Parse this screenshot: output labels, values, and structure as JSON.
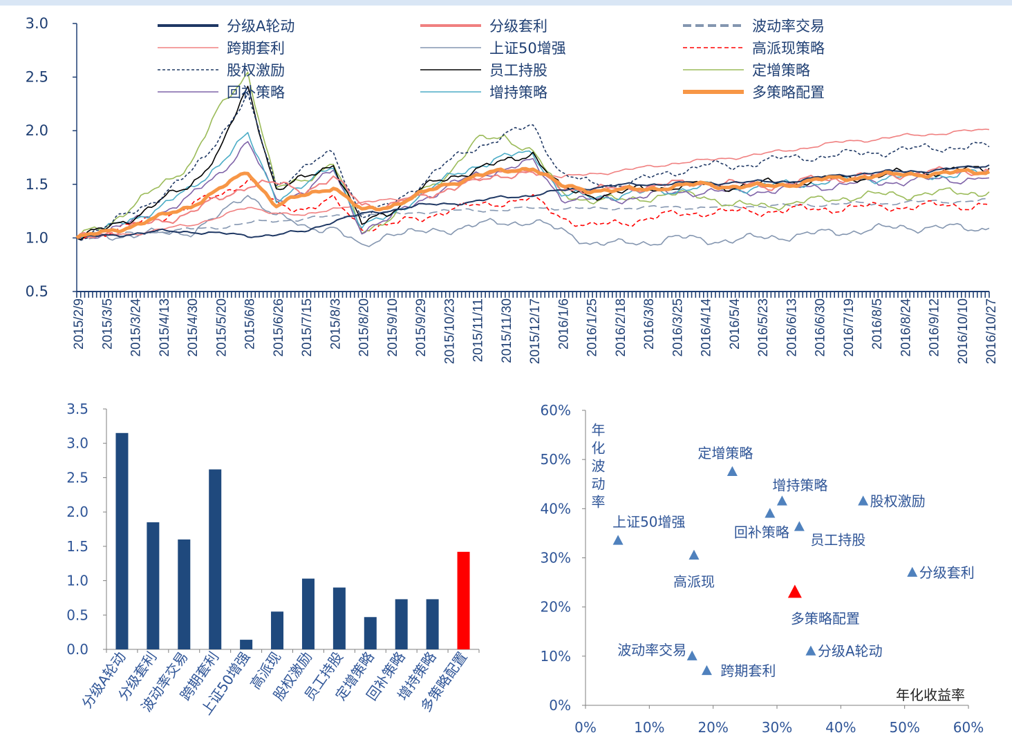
{
  "chart_data": [
    {
      "type": "line",
      "ylim": [
        0.5,
        3.0
      ],
      "yticks": [
        "0.5",
        "1.0",
        "1.5",
        "2.0",
        "2.5",
        "3.0"
      ],
      "x_tick_labels": [
        "2015/2/9",
        "2015/3/5",
        "2015/3/24",
        "2015/4/13",
        "2015/4/30",
        "2015/5/20",
        "2015/6/8",
        "2015/6/26",
        "2015/7/15",
        "2015/8/3",
        "2015/8/20",
        "2015/9/10",
        "2015/9/29",
        "2015/10/23",
        "2015/11/11",
        "2015/11/30",
        "2015/12/17",
        "2016/1/6",
        "2016/1/25",
        "2016/2/18",
        "2016/3/8",
        "2016/3/25",
        "2016/4/14",
        "2016/5/4",
        "2016/5/23",
        "2016/6/13",
        "2016/6/30",
        "2016/7/19",
        "2016/8/5",
        "2016/8/24",
        "2016/9/12",
        "2016/10/10",
        "2016/10/27"
      ],
      "series": [
        {
          "name": "分级A轮动",
          "color": "#1f3864",
          "values": [
            1.0,
            1.02,
            1.04,
            1.06,
            1.06,
            1.04,
            1.02,
            1.03,
            1.06,
            1.16,
            1.22,
            1.26,
            1.3,
            1.32,
            1.34,
            1.38,
            1.4,
            1.44,
            1.47,
            1.49,
            1.5,
            1.51,
            1.51,
            1.52,
            1.52,
            1.53,
            1.56,
            1.59,
            1.61,
            1.62,
            1.63,
            1.65,
            1.68
          ]
        },
        {
          "name": "分级套利",
          "color": "#f08080",
          "values": [
            1.0,
            1.05,
            1.1,
            1.16,
            1.24,
            1.36,
            1.5,
            1.5,
            1.45,
            1.55,
            1.32,
            1.3,
            1.38,
            1.46,
            1.52,
            1.6,
            1.6,
            1.48,
            1.44,
            1.46,
            1.48,
            1.5,
            1.52,
            1.5,
            1.49,
            1.5,
            1.55,
            1.56,
            1.58,
            1.6,
            1.61,
            1.62,
            1.63
          ]
        },
        {
          "name": "波动率交易",
          "color": "#8496b0",
          "dash": "12,6",
          "values": [
            1.0,
            1.02,
            1.04,
            1.06,
            1.08,
            1.1,
            1.14,
            1.16,
            1.18,
            1.2,
            1.22,
            1.22,
            1.24,
            1.25,
            1.26,
            1.26,
            1.28,
            1.28,
            1.27,
            1.28,
            1.28,
            1.29,
            1.28,
            1.29,
            1.3,
            1.3,
            1.31,
            1.32,
            1.32,
            1.33,
            1.34,
            1.34,
            1.35
          ]
        },
        {
          "name": "跨期套利",
          "color": "#f08080",
          "values": [
            1.0,
            1.02,
            1.04,
            1.08,
            1.12,
            1.2,
            1.28,
            1.24,
            1.2,
            1.28,
            1.32,
            1.36,
            1.4,
            1.5,
            1.56,
            1.62,
            1.64,
            1.56,
            1.6,
            1.62,
            1.66,
            1.7,
            1.72,
            1.75,
            1.78,
            1.82,
            1.86,
            1.9,
            1.92,
            1.95,
            1.97,
            1.99,
            2.01
          ]
        },
        {
          "name": "上证50增强",
          "color": "#8496b0",
          "values": [
            1.0,
            1.02,
            1.03,
            1.04,
            1.06,
            1.2,
            1.42,
            1.2,
            1.1,
            1.1,
            0.9,
            1.06,
            1.04,
            1.08,
            1.12,
            1.14,
            1.16,
            1.06,
            0.96,
            0.94,
            0.96,
            1.0,
            0.98,
            0.98,
            1.0,
            1.02,
            1.04,
            1.06,
            1.08,
            1.1,
            1.1,
            1.09,
            1.09
          ]
        },
        {
          "name": "高派现策略",
          "color": "#ff0000",
          "dash": "6,4",
          "values": [
            1.0,
            1.06,
            1.12,
            1.2,
            1.3,
            1.4,
            1.55,
            1.3,
            1.28,
            1.35,
            1.1,
            1.12,
            1.18,
            1.26,
            1.3,
            1.34,
            1.36,
            1.2,
            1.1,
            1.14,
            1.18,
            1.22,
            1.24,
            1.24,
            1.25,
            1.26,
            1.27,
            1.28,
            1.29,
            1.29,
            1.3,
            1.3,
            1.31
          ]
        },
        {
          "name": "股权激励",
          "color": "#1f3864",
          "dash": "4,3",
          "values": [
            1.0,
            1.1,
            1.25,
            1.4,
            1.6,
            1.95,
            2.3,
            1.5,
            1.65,
            1.8,
            1.2,
            1.3,
            1.5,
            1.7,
            1.85,
            1.95,
            2.05,
            1.6,
            1.5,
            1.5,
            1.55,
            1.62,
            1.68,
            1.66,
            1.72,
            1.74,
            1.76,
            1.78,
            1.8,
            1.82,
            1.84,
            1.85,
            1.85
          ]
        },
        {
          "name": "员工持股",
          "color": "#000000",
          "values": [
            1.0,
            1.08,
            1.2,
            1.35,
            1.5,
            1.8,
            2.4,
            1.45,
            1.55,
            1.7,
            1.12,
            1.25,
            1.45,
            1.55,
            1.65,
            1.7,
            1.8,
            1.45,
            1.4,
            1.42,
            1.46,
            1.48,
            1.5,
            1.48,
            1.5,
            1.52,
            1.54,
            1.56,
            1.58,
            1.6,
            1.62,
            1.63,
            1.65
          ]
        },
        {
          "name": "定增策略",
          "color": "#9bbb59",
          "values": [
            1.0,
            1.12,
            1.3,
            1.5,
            1.7,
            2.2,
            2.55,
            1.45,
            1.55,
            1.7,
            1.05,
            1.2,
            1.4,
            1.6,
            1.9,
            1.95,
            1.8,
            1.42,
            1.35,
            1.35,
            1.38,
            1.4,
            1.4,
            1.3,
            1.3,
            1.32,
            1.35,
            1.38,
            1.4,
            1.4,
            1.42,
            1.42,
            1.43
          ]
        },
        {
          "name": "回补策略",
          "color": "#7f63a8",
          "values": [
            1.0,
            1.06,
            1.15,
            1.25,
            1.38,
            1.6,
            1.9,
            1.35,
            1.45,
            1.62,
            1.08,
            1.18,
            1.35,
            1.48,
            1.58,
            1.65,
            1.7,
            1.38,
            1.35,
            1.36,
            1.4,
            1.42,
            1.44,
            1.42,
            1.44,
            1.46,
            1.48,
            1.5,
            1.52,
            1.53,
            1.54,
            1.55,
            1.56
          ]
        },
        {
          "name": "增持策略",
          "color": "#4bacc6",
          "values": [
            1.0,
            1.07,
            1.18,
            1.3,
            1.45,
            1.7,
            1.95,
            1.38,
            1.48,
            1.68,
            1.1,
            1.2,
            1.4,
            1.55,
            1.68,
            1.75,
            1.8,
            1.4,
            1.38,
            1.4,
            1.42,
            1.45,
            1.48,
            1.46,
            1.48,
            1.5,
            1.52,
            1.54,
            1.56,
            1.57,
            1.58,
            1.6,
            1.6
          ]
        },
        {
          "name": "多策略配置",
          "color": "#f79646",
          "width": 5,
          "values": [
            1.0,
            1.05,
            1.12,
            1.2,
            1.3,
            1.45,
            1.62,
            1.3,
            1.4,
            1.48,
            1.25,
            1.3,
            1.4,
            1.5,
            1.58,
            1.62,
            1.66,
            1.48,
            1.45,
            1.44,
            1.46,
            1.48,
            1.5,
            1.48,
            1.48,
            1.5,
            1.54,
            1.56,
            1.58,
            1.59,
            1.6,
            1.61,
            1.62
          ]
        }
      ]
    },
    {
      "type": "bar",
      "ylim": [
        0,
        3.5
      ],
      "yticks": [
        "0.0",
        "0.5",
        "1.0",
        "1.5",
        "2.0",
        "2.5",
        "3.0",
        "3.5"
      ],
      "categories": [
        "分级A轮动",
        "分级套利",
        "波动率交易",
        "跨期套利",
        "上证50增强",
        "高派现",
        "股权激励",
        "员工持股",
        "定增策略",
        "回补策略",
        "增持策略",
        "多策略配置"
      ],
      "values": [
        3.15,
        1.85,
        1.6,
        2.62,
        0.14,
        0.55,
        1.03,
        0.9,
        0.47,
        0.73,
        0.73,
        1.42
      ],
      "colors": [
        "#1f497d",
        "#1f497d",
        "#1f497d",
        "#1f497d",
        "#1f497d",
        "#1f497d",
        "#1f497d",
        "#1f497d",
        "#1f497d",
        "#1f497d",
        "#1f497d",
        "#ff0000"
      ]
    },
    {
      "type": "scatter",
      "xlabel": "年化收益率",
      "ylabel": "年化波动率",
      "xlim": [
        0,
        60
      ],
      "ylim": [
        0,
        60
      ],
      "xticks": [
        "0%",
        "10%",
        "20%",
        "30%",
        "40%",
        "50%",
        "60%"
      ],
      "yticks": [
        "0%",
        "10%",
        "20%",
        "30%",
        "40%",
        "50%",
        "60%"
      ],
      "points": [
        {
          "label": "定增策略",
          "x": 23.0,
          "y": 47.5,
          "color": "#4f81bd",
          "label_pos": "above"
        },
        {
          "label": "增持策略",
          "x": 30.8,
          "y": 41.5,
          "color": "#4f81bd",
          "label_pos": "above-right"
        },
        {
          "label": "股权激励",
          "x": 43.5,
          "y": 41.5,
          "color": "#4f81bd",
          "label_pos": "right"
        },
        {
          "label": "回补策略",
          "x": 28.9,
          "y": 39.0,
          "color": "#4f81bd",
          "label_pos": "below-left"
        },
        {
          "label": "上证50增强",
          "x": 5.1,
          "y": 33.5,
          "color": "#4f81bd",
          "label_pos": "above-right"
        },
        {
          "label": "员工持股",
          "x": 33.5,
          "y": 36.3,
          "color": "#4f81bd",
          "label_pos": "below-right"
        },
        {
          "label": "高派现",
          "x": 17.0,
          "y": 30.5,
          "color": "#4f81bd",
          "label_pos": "below"
        },
        {
          "label": "分级套利",
          "x": 51.2,
          "y": 27.0,
          "color": "#4f81bd",
          "label_pos": "right"
        },
        {
          "label": "多策略配置",
          "x": 32.8,
          "y": 23.0,
          "color": "#ff0000",
          "label_pos": "below",
          "big": true
        },
        {
          "label": "分级A轮动",
          "x": 35.3,
          "y": 11.0,
          "color": "#4f81bd",
          "label_pos": "right"
        },
        {
          "label": "波动率交易",
          "x": 16.7,
          "y": 10.0,
          "color": "#4f81bd",
          "label_pos": "left"
        },
        {
          "label": "跨期套利",
          "x": 19.0,
          "y": 7.0,
          "color": "#4f81bd",
          "label_pos": "right"
        }
      ]
    }
  ]
}
